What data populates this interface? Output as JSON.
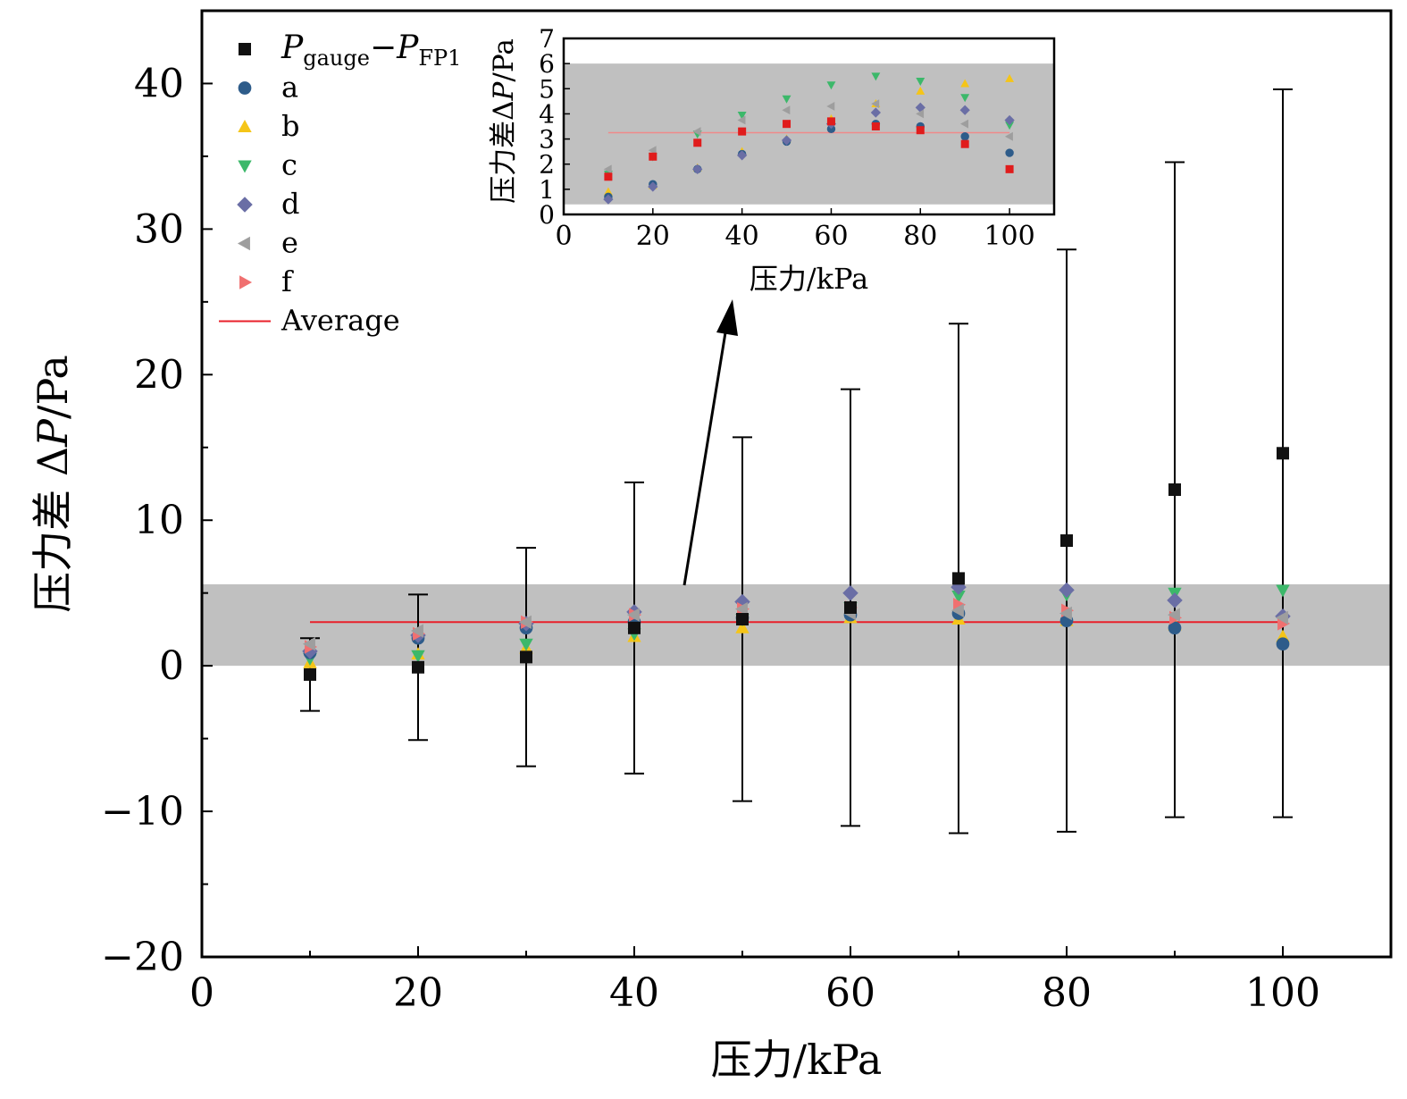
{
  "chart_data": [
    {
      "type": "scatter",
      "xlabel": "压力/kPa",
      "ylabel_prefix": "压力差 Δ",
      "ylabel_var": "P",
      "ylabel_unit": "/Pa",
      "xlim": [
        0,
        110
      ],
      "ylim": [
        -20,
        45
      ],
      "x_ticks": [
        0,
        20,
        40,
        60,
        80,
        100
      ],
      "y_ticks": [
        -20,
        -10,
        0,
        10,
        20,
        30,
        40
      ],
      "x_minor_ticks": [
        10,
        30,
        50,
        70,
        90
      ],
      "y_minor_ticks": [
        -15,
        -5,
        5,
        15,
        25,
        35
      ],
      "band": {
        "y_low": 0,
        "y_high": 5.6,
        "color": "#c0c0c0"
      },
      "average": {
        "name": "Average",
        "x_start": 10,
        "x_end": 100,
        "y": 3.0,
        "color": "#e8202a"
      },
      "x": [
        10,
        20,
        30,
        40,
        50,
        60,
        70,
        80,
        90,
        100
      ],
      "series": [
        {
          "name": "Pgauge−PFP1",
          "marker": "square",
          "color": "#111111",
          "values": [
            -0.6,
            -0.1,
            0.6,
            2.6,
            3.2,
            4.0,
            6.0,
            8.6,
            12.1,
            14.6
          ],
          "error": [
            2.5,
            5.0,
            7.5,
            10.0,
            12.5,
            15.0,
            17.5,
            20.0,
            22.5,
            25.0
          ]
        },
        {
          "name": "a",
          "marker": "circle",
          "color": "#2e5c8a",
          "values": [
            0.9,
            1.9,
            2.6,
            3.0,
            3.3,
            3.5,
            3.6,
            3.1,
            2.6,
            1.5
          ]
        },
        {
          "name": "b",
          "marker": "triangle-up",
          "color": "#f5c518",
          "values": [
            0.2,
            0.8,
            1.2,
            2.0,
            2.6,
            3.3,
            3.2,
            3.1,
            2.8,
            2.0
          ]
        },
        {
          "name": "c",
          "marker": "triangle-down",
          "color": "#3cb86a",
          "values": [
            0.5,
            0.7,
            1.5,
            2.2,
            3.2,
            4.0,
            4.8,
            4.9,
            5.0,
            5.2
          ]
        },
        {
          "name": "d",
          "marker": "diamond",
          "color": "#6a6ea5",
          "values": [
            1.0,
            2.1,
            2.9,
            3.7,
            4.4,
            5.0,
            5.4,
            5.2,
            4.5,
            3.4
          ]
        },
        {
          "name": "e",
          "marker": "triangle-left",
          "color": "#9e9e9e",
          "values": [
            1.5,
            2.4,
            3.0,
            3.5,
            3.9,
            3.6,
            3.8,
            3.6,
            3.5,
            3.3
          ]
        },
        {
          "name": "f",
          "marker": "triangle-right",
          "color": "#f07070",
          "values": [
            1.3,
            2.2,
            3.0,
            3.5,
            3.9,
            4.0,
            4.2,
            3.8,
            3.3,
            2.9
          ]
        }
      ],
      "legend": {
        "position": "top-left",
        "entries": [
          "a",
          "b",
          "c",
          "d",
          "e",
          "f",
          "Average"
        ]
      }
    },
    {
      "type": "scatter",
      "xlabel": "压力/kPa",
      "ylabel_prefix": "压力差Δ",
      "ylabel_var": "P",
      "ylabel_unit": "/Pa",
      "xlim": [
        0,
        110
      ],
      "ylim": [
        0,
        7
      ],
      "x_ticks": [
        0,
        20,
        40,
        60,
        80,
        100
      ],
      "y_ticks": [
        0,
        1,
        2,
        3,
        4,
        5,
        6,
        7
      ],
      "band": {
        "y_low": 0.4,
        "y_high": 6.0,
        "color": "#c0c0c0"
      },
      "average": {
        "x_start": 10,
        "x_end": 100,
        "y": 3.25,
        "color": "#f08a8a"
      },
      "x": [
        10,
        20,
        30,
        40,
        50,
        60,
        70,
        80,
        90,
        100
      ],
      "series": [
        {
          "name": "Pgauge−PFP1",
          "marker": "square",
          "color": "#e01c1c",
          "values": [
            1.5,
            2.3,
            2.85,
            3.3,
            3.6,
            3.7,
            3.5,
            3.35,
            2.8,
            1.8
          ]
        },
        {
          "name": "a",
          "marker": "circle",
          "color": "#2e5c8a",
          "values": [
            0.7,
            1.2,
            1.8,
            2.4,
            2.9,
            3.4,
            3.6,
            3.5,
            3.1,
            2.45
          ]
        },
        {
          "name": "b",
          "marker": "triangle-up",
          "color": "#f5c518",
          "values": [
            0.9,
            1.15,
            1.85,
            2.5,
            3.0,
            3.8,
            4.4,
            4.9,
            5.2,
            5.4
          ]
        },
        {
          "name": "c",
          "marker": "triangle-down",
          "color": "#3cb86a",
          "values": [
            1.6,
            2.3,
            3.2,
            3.95,
            4.6,
            5.15,
            5.5,
            5.3,
            4.65,
            3.55
          ]
        },
        {
          "name": "d",
          "marker": "diamond",
          "color": "#6a6ea5",
          "values": [
            0.6,
            1.1,
            1.8,
            2.35,
            2.95,
            3.6,
            4.05,
            4.25,
            4.15,
            3.75
          ]
        },
        {
          "name": "e",
          "marker": "triangle-left",
          "color": "#9e9e9e",
          "values": [
            1.8,
            2.55,
            3.3,
            3.75,
            4.15,
            4.3,
            4.4,
            4.0,
            3.6,
            3.1
          ]
        }
      ]
    }
  ],
  "legend_label_main": "P",
  "legend_label_sub1": "gauge",
  "legend_label_sub2": "FP1",
  "legend_label_minus": "−"
}
